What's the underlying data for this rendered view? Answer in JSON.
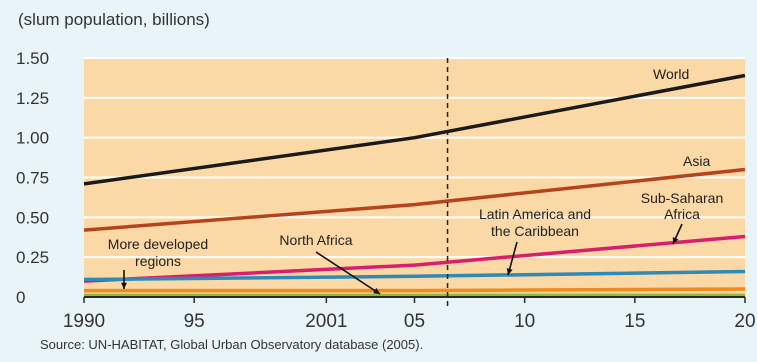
{
  "chart_data": {
    "type": "line",
    "unit_label": "(slum population, billions)",
    "source": "Source: UN-HABITAT, Global Urban Observatory database (2005).",
    "x_ticks": [
      1990,
      1995,
      2001,
      2005,
      2010,
      2015,
      2020
    ],
    "x_tick_labels": [
      "1990",
      "95",
      "2001",
      "05",
      "10",
      "15",
      "20"
    ],
    "y_ticks": [
      0,
      0.25,
      0.5,
      0.75,
      1.0,
      1.25,
      1.5
    ],
    "y_tick_labels": [
      "0",
      "0.25",
      "0.50",
      "0.75",
      "1.00",
      "1.25",
      "1.50"
    ],
    "xlim": [
      1990,
      2020
    ],
    "ylim": [
      0,
      1.5
    ],
    "grid": "horizontal",
    "reference_line_x": 2006.5,
    "series": [
      {
        "name": "World",
        "color": "#1a1a1a",
        "x": [
          1990,
          2005,
          2020
        ],
        "y": [
          0.71,
          1.0,
          1.39
        ]
      },
      {
        "name": "Asia",
        "color": "#b5441c",
        "x": [
          1990,
          2005,
          2020
        ],
        "y": [
          0.42,
          0.58,
          0.8
        ]
      },
      {
        "name": "Sub-Saharan Africa",
        "color": "#d81e6e",
        "x": [
          1990,
          2005,
          2020
        ],
        "y": [
          0.1,
          0.2,
          0.38
        ]
      },
      {
        "name": "Latin America and the Caribbean",
        "color": "#2f8ab8",
        "x": [
          1990,
          2005,
          2020
        ],
        "y": [
          0.11,
          0.13,
          0.16
        ]
      },
      {
        "name": "North Africa",
        "color": "#f08a1c",
        "x": [
          1990,
          2005,
          2020
        ],
        "y": [
          0.04,
          0.04,
          0.05
        ]
      },
      {
        "name": "More developed regions",
        "color": "#8dbb3a",
        "x": [
          1990,
          2005,
          2020
        ],
        "y": [
          0.01,
          0.01,
          0.01
        ]
      }
    ],
    "annotations": [
      {
        "text": "World"
      },
      {
        "text": "Asia"
      },
      {
        "text": "Sub-Saharan"
      },
      {
        "text": "Africa"
      },
      {
        "text": "Latin America and"
      },
      {
        "text": "the Caribbean"
      },
      {
        "text": "North Africa"
      },
      {
        "text": "More developed"
      },
      {
        "text": "regions"
      }
    ]
  },
  "colors": {
    "plot_background": "#fbd9a6",
    "page_background": "#e9f4f8",
    "gridline": "#ffffff",
    "axis": "#2b2b2b"
  }
}
